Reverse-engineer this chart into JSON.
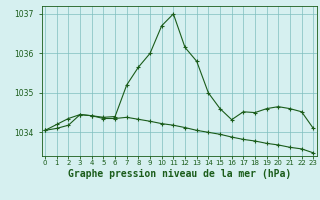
{
  "title": "Graphe pression niveau de la mer (hPa)",
  "x_labels": [
    "0",
    "1",
    "2",
    "3",
    "4",
    "5",
    "6",
    "7",
    "8",
    "9",
    "10",
    "11",
    "12",
    "13",
    "14",
    "15",
    "16",
    "17",
    "18",
    "19",
    "20",
    "21",
    "22",
    "23"
  ],
  "x_values": [
    0,
    1,
    2,
    3,
    4,
    5,
    6,
    7,
    8,
    9,
    10,
    11,
    12,
    13,
    14,
    15,
    16,
    17,
    18,
    19,
    20,
    21,
    22,
    23
  ],
  "line1_values": [
    1034.05,
    1034.2,
    1034.35,
    1034.45,
    1034.42,
    1034.38,
    1034.4,
    1035.2,
    1035.65,
    1036.0,
    1036.7,
    1037.0,
    1036.15,
    1035.8,
    1035.0,
    1034.6,
    1034.32,
    1034.52,
    1034.5,
    1034.6,
    1034.65,
    1034.6,
    1034.52,
    1034.1
  ],
  "line2_values": [
    1034.05,
    1034.1,
    1034.18,
    1034.45,
    1034.42,
    1034.35,
    1034.35,
    1034.38,
    1034.33,
    1034.28,
    1034.22,
    1034.18,
    1034.12,
    1034.05,
    1034.0,
    1033.95,
    1033.88,
    1033.82,
    1033.78,
    1033.72,
    1033.68,
    1033.62,
    1033.58,
    1033.48
  ],
  "line_color": "#1a5c1a",
  "bg_color": "#d6f0f0",
  "grid_color": "#7fbfbf",
  "axis_color": "#1a5c1a",
  "ylim": [
    1033.4,
    1037.2
  ],
  "yticks": [
    1034,
    1035,
    1036,
    1037
  ],
  "title_fontsize": 7.0,
  "tick_fontsize": 5.5
}
